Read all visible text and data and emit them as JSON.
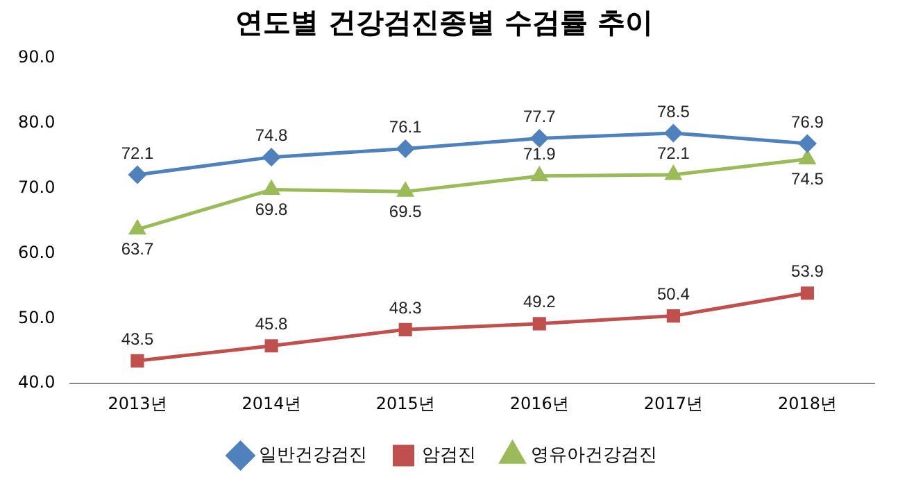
{
  "chart_data": {
    "type": "line",
    "title": "연도별 건강검진종별 수검률 추이",
    "categories": [
      "2013년",
      "2014년",
      "2015년",
      "2016년",
      "2017년",
      "2018년"
    ],
    "series": [
      {
        "name": "일반건강검진",
        "color": "#4f81bd",
        "marker": "diamond",
        "values": [
          72.1,
          74.8,
          76.1,
          77.7,
          78.5,
          76.9
        ]
      },
      {
        "name": "암검진",
        "color": "#c0504d",
        "marker": "square",
        "values": [
          43.5,
          45.8,
          48.3,
          49.2,
          50.4,
          53.9
        ]
      },
      {
        "name": "영유아건강검진",
        "color": "#9bbb59",
        "marker": "triangle",
        "values": [
          63.7,
          69.8,
          69.5,
          71.9,
          72.1,
          74.5
        ]
      }
    ],
    "ylim": [
      40,
      90
    ],
    "yticks": [
      {
        "value": 40,
        "label": "40.0"
      },
      {
        "value": 50,
        "label": "50.0"
      },
      {
        "value": 60,
        "label": "60.0"
      },
      {
        "value": 70,
        "label": "70.0"
      },
      {
        "value": 80,
        "label": "80.0"
      },
      {
        "value": 90,
        "label": "90.0"
      }
    ],
    "grid": false,
    "legend": "bottom",
    "data_labels": true,
    "line_style": "solid"
  }
}
